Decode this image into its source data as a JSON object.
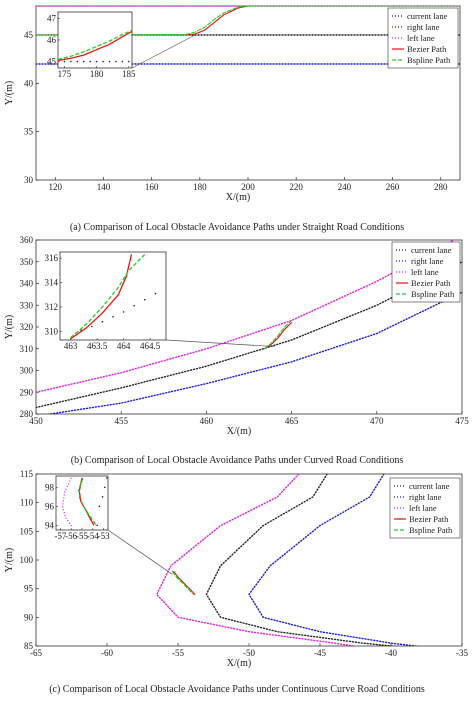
{
  "captions": {
    "a": "(a) Comparison of Local Obstacle Avoidance Paths under Straight Road Conditions",
    "b": "(b) Comparison of Local Obstacle Avoidance Paths under Curved Road Conditions",
    "c": "(c) Comparison of Local Obstacle Avoidance Paths under Continuous Curve Road Conditions"
  },
  "colors": {
    "current": "#222222",
    "right": "#1a1ad6",
    "left": "#e020e0",
    "bezier": "#ee1111",
    "bspline": "#22cc22",
    "axis": "#333333"
  },
  "chart_data": [
    {
      "type": "line",
      "xlabel": "X/(m)",
      "ylabel": "Y/(m)",
      "xlim": [
        112,
        288
      ],
      "ylim": [
        30,
        48
      ],
      "xticks": [
        120,
        140,
        160,
        180,
        200,
        220,
        240,
        260,
        280
      ],
      "yticks": [
        30,
        35,
        40,
        45
      ],
      "legend_position": "top-right",
      "series": [
        {
          "name": "current lane",
          "style": "dotted",
          "color": "current",
          "x": [
            112,
            288
          ],
          "y": [
            45,
            45
          ]
        },
        {
          "name": "right lane",
          "style": "dotted",
          "color": "right",
          "x": [
            112,
            288
          ],
          "y": [
            42,
            42
          ]
        },
        {
          "name": "left lane",
          "style": "dotted",
          "color": "left",
          "x": [
            112,
            288
          ],
          "y": [
            48,
            48
          ]
        },
        {
          "name": "Bezier Path",
          "style": "solid",
          "color": "bezier",
          "x": [
            112,
            174,
            178,
            182,
            186,
            190,
            196,
            200,
            288
          ],
          "y": [
            45,
            45,
            45.1,
            45.5,
            46.3,
            47.1,
            47.8,
            48,
            48
          ]
        },
        {
          "name": "Bspline Path",
          "style": "dashed",
          "color": "bspline",
          "x": [
            112,
            174,
            178,
            182,
            186,
            190,
            196,
            200,
            288
          ],
          "y": [
            45,
            45.05,
            45.3,
            45.8,
            46.6,
            47.3,
            47.9,
            48,
            48
          ]
        }
      ],
      "inset": {
        "xlim": [
          174,
          185.5
        ],
        "ylim": [
          44.7,
          47.3
        ],
        "xticks": [
          175,
          180,
          185
        ],
        "yticks": [
          45,
          46,
          47
        ],
        "points_black": {
          "x": [
            175,
            176,
            177,
            178,
            179,
            180,
            181,
            182,
            183,
            184,
            185
          ],
          "y": [
            45,
            45,
            45,
            45,
            45,
            45,
            45,
            45,
            45,
            45,
            45
          ]
        },
        "bezier": {
          "x": [
            174,
            176,
            178,
            180,
            182,
            184,
            185.5
          ],
          "y": [
            45.05,
            45.15,
            45.3,
            45.55,
            45.8,
            46.15,
            46.4
          ]
        },
        "bspline": {
          "x": [
            174,
            176,
            178,
            180,
            182,
            184,
            185.5
          ],
          "y": [
            45.1,
            45.25,
            45.45,
            45.7,
            45.95,
            46.25,
            46.45
          ]
        },
        "zoom_target": {
          "x": 178,
          "y": 45
        }
      }
    },
    {
      "type": "line",
      "xlabel": "X/(m)",
      "ylabel": "Y/(m)",
      "xlim": [
        450,
        475
      ],
      "ylim": [
        280,
        360
      ],
      "xticks": [
        450,
        455,
        460,
        465,
        470,
        475
      ],
      "yticks": [
        280,
        290,
        300,
        310,
        320,
        330,
        340,
        350,
        360
      ],
      "legend_position": "top-right",
      "series": [
        {
          "name": "current lane",
          "style": "dotted",
          "color": "current",
          "x": [
            450,
            455,
            460,
            465,
            470,
            475
          ],
          "y": [
            283,
            292,
            302,
            314,
            330,
            350
          ]
        },
        {
          "name": "right lane",
          "style": "dotted",
          "color": "right",
          "x": [
            450,
            455,
            460,
            465,
            470,
            475
          ],
          "y": [
            279,
            285,
            294,
            304,
            317,
            336
          ]
        },
        {
          "name": "left lane",
          "style": "dotted",
          "color": "left",
          "x": [
            450,
            455,
            460,
            465,
            470,
            475
          ],
          "y": [
            290,
            299,
            310,
            323,
            341,
            362
          ]
        },
        {
          "name": "Bezier Path",
          "style": "solid",
          "color": "bezier",
          "x": [
            463.4,
            463.8,
            464.2,
            464.6,
            465.0
          ],
          "y": [
            310,
            312,
            315,
            319,
            322
          ]
        },
        {
          "name": "Bspline Path",
          "style": "dashed",
          "color": "bspline",
          "x": [
            463.4,
            463.8,
            464.2,
            464.6,
            465.0
          ],
          "y": [
            310,
            312.5,
            316,
            320,
            323
          ]
        }
      ],
      "inset": {
        "xlim": [
          462.8,
          464.8
        ],
        "ylim": [
          309.3,
          316.5
        ],
        "xticks": [
          463,
          463.5,
          464,
          464.5
        ],
        "yticks": [
          310,
          312,
          314,
          316
        ],
        "points_black": {
          "x": [
            463.2,
            463.4,
            463.6,
            463.8,
            464.0,
            464.2,
            464.4,
            464.6
          ],
          "y": [
            310.1,
            310.4,
            310.8,
            311.2,
            311.6,
            312.1,
            312.6,
            313.1
          ]
        },
        "bezier": {
          "x": [
            463.0,
            463.3,
            463.6,
            463.9,
            464.05,
            464.15
          ],
          "y": [
            309.4,
            310.3,
            311.5,
            313.0,
            314.5,
            316.3
          ]
        },
        "bspline": {
          "x": [
            463.0,
            463.3,
            463.6,
            463.9,
            464.1,
            464.4
          ],
          "y": [
            309.5,
            310.6,
            312.0,
            313.6,
            315.0,
            316.3
          ]
        },
        "zoom_target": {
          "x": 464.0,
          "y": 311
        }
      }
    },
    {
      "type": "line",
      "xlabel": "X/(m)",
      "ylabel": "Y/(m)",
      "xlim": [
        -65,
        -35
      ],
      "ylim": [
        85,
        115
      ],
      "xticks": [
        -65,
        -60,
        -55,
        -50,
        -45,
        -40,
        -35
      ],
      "yticks": [
        85,
        90,
        95,
        100,
        105,
        110,
        115
      ],
      "legend_position": "top-right",
      "series": [
        {
          "name": "current lane",
          "style": "dotted",
          "color": "current",
          "x": [
            -44.5,
            -45.5,
            -49,
            -52,
            -53,
            -52,
            -48,
            -42,
            -36
          ],
          "y": [
            115,
            111,
            106,
            99,
            94,
            90,
            87.5,
            85.5,
            84
          ]
        },
        {
          "name": "right lane",
          "style": "dotted",
          "color": "right",
          "x": [
            -40.5,
            -41.5,
            -45,
            -48.5,
            -50,
            -49,
            -45,
            -40,
            -35
          ],
          "y": [
            115,
            111,
            106,
            99,
            94,
            90,
            87.5,
            85.5,
            84
          ]
        },
        {
          "name": "left lane",
          "style": "dotted",
          "color": "left",
          "x": [
            -46.5,
            -48,
            -52,
            -55.5,
            -56.5,
            -55,
            -50,
            -44,
            -40
          ],
          "y": [
            115,
            111,
            106,
            99,
            94,
            90,
            87.5,
            85.5,
            84
          ]
        },
        {
          "name": "Bezier Path",
          "style": "solid",
          "color": "bezier",
          "x": [
            -55.3,
            -55.0,
            -54.6,
            -54.2,
            -53.8
          ],
          "y": [
            98,
            97,
            96,
            95,
            94
          ]
        },
        {
          "name": "Bspline Path",
          "style": "dashed",
          "color": "bspline",
          "x": [
            -55.4,
            -55.1,
            -54.7,
            -54.3,
            -53.9
          ],
          "y": [
            98,
            97,
            96,
            95,
            94
          ]
        }
      ],
      "inset": {
        "xlim": [
          -57.4,
          -52.6
        ],
        "ylim": [
          93.5,
          99.2
        ],
        "xticks": [
          -57,
          -56,
          -55,
          -54,
          -53
        ],
        "yticks": [
          94,
          96,
          98
        ],
        "points_black": {
          "x": [
            -52.7,
            -52.9,
            -53.1,
            -53.4,
            -53.6
          ],
          "y": [
            99,
            98,
            97,
            96,
            94
          ]
        },
        "bezier": {
          "x": [
            -55.0,
            -55.25,
            -55.1,
            -54.6,
            -54.2,
            -53.9
          ],
          "y": [
            99,
            97.6,
            96.5,
            95.5,
            94.6,
            94
          ]
        },
        "bspline": {
          "x": [
            -54.9,
            -55.3,
            -55.2,
            -54.7,
            -54.1,
            -53.7
          ],
          "y": [
            99,
            97.8,
            96.8,
            95.7,
            94.7,
            94
          ]
        },
        "left_curve": {
          "x": [
            -56.0,
            -56.6,
            -56.8,
            -56.5,
            -55.9
          ],
          "y": [
            99,
            97.5,
            96,
            94.8,
            93.8
          ]
        },
        "zoom_target": {
          "x": -55.4,
          "y": 97.5
        }
      }
    }
  ],
  "legend_labels": [
    "current lane",
    "right lane",
    "left lane",
    "Bezier Path",
    "Bspline Path"
  ]
}
